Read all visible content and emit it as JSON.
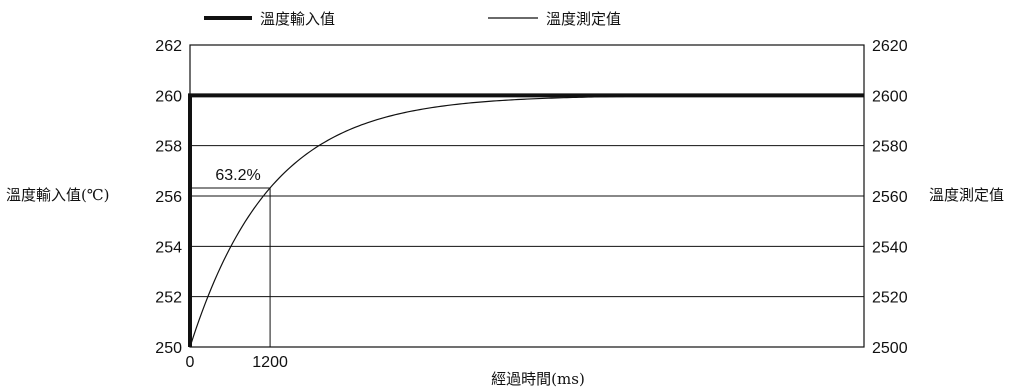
{
  "chart_data": {
    "type": "line",
    "legend": [
      {
        "label": "溫度輸入值",
        "style": "thick"
      },
      {
        "label": "溫度測定值",
        "style": "thin"
      }
    ],
    "legend_position": "top",
    "y_left_label": "溫度輸入值(℃)",
    "y_right_label": "溫度測定值",
    "x_label": "經過時間(ms)",
    "y_left_range": [
      250,
      262
    ],
    "y_left_ticks": [
      "250",
      "252",
      "254",
      "256",
      "258",
      "260",
      "262"
    ],
    "y_right_range": [
      2500,
      2620
    ],
    "y_right_ticks": [
      "2500",
      "2520",
      "2540",
      "2560",
      "2580",
      "2600",
      "2620"
    ],
    "x_range": [
      0,
      10100
    ],
    "x_ticks": [
      "0",
      "1200"
    ],
    "grid": "horizontal",
    "series": [
      {
        "name": "溫度輸入值",
        "axis": "left",
        "points": [
          [
            0,
            250
          ],
          [
            0,
            260
          ],
          [
            10100,
            260
          ]
        ]
      },
      {
        "name": "溫度測定值",
        "axis": "right",
        "time_constant_ms": 1200,
        "start": 2500,
        "end": 2600,
        "points": [
          [
            0,
            2500
          ],
          [
            400,
            2528.3
          ],
          [
            800,
            2548.7
          ],
          [
            1200,
            2563.2
          ],
          [
            1600,
            2573.6
          ],
          [
            2000,
            2581.1
          ],
          [
            2500,
            2587.6
          ],
          [
            3000,
            2591.8
          ],
          [
            4000,
            2596.4
          ],
          [
            5000,
            2598.5
          ],
          [
            6000,
            2599.3
          ],
          [
            7500,
            2599.8
          ],
          [
            10100,
            2600
          ]
        ]
      }
    ],
    "annotation": {
      "label": "63.2%",
      "x": 1200,
      "y_right": 2563.2
    }
  }
}
